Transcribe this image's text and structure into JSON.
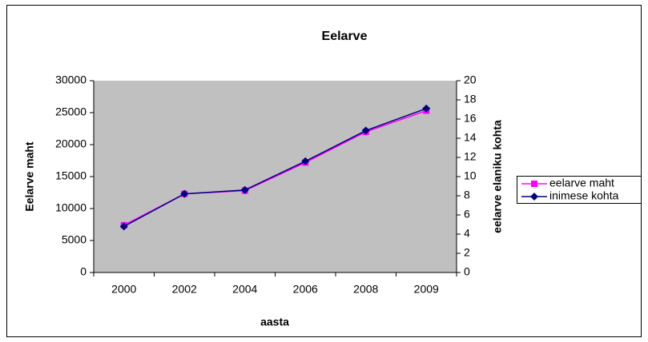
{
  "chart_data": {
    "type": "line",
    "title": "Eelarve",
    "x_label": "aasta",
    "y_label": "Eelarve maht",
    "y2_label": "eelarve elaniku kohta",
    "categories": [
      "2000",
      "2002",
      "2004",
      "2006",
      "2008",
      "2009"
    ],
    "series": [
      {
        "name": "eelarve maht",
        "color": "#ff00ff",
        "marker": "square",
        "values": [
          7400,
          12300,
          12800,
          17200,
          22000,
          25300
        ]
      },
      {
        "name": "inimese kohta",
        "color": "#000080",
        "marker": "diamond",
        "axis": "y2",
        "values": [
          4.8,
          8.2,
          8.6,
          11.6,
          14.8,
          17.1
        ]
      }
    ],
    "ylim": [
      0,
      30000
    ],
    "yticks": [
      0,
      5000,
      10000,
      15000,
      20000,
      25000,
      30000
    ],
    "y2lim": [
      0,
      20
    ],
    "y2ticks": [
      0,
      2,
      4,
      6,
      8,
      10,
      12,
      14,
      16,
      18,
      20
    ],
    "plot_background": "#c0c0c0",
    "grid": false,
    "legend": "right"
  }
}
